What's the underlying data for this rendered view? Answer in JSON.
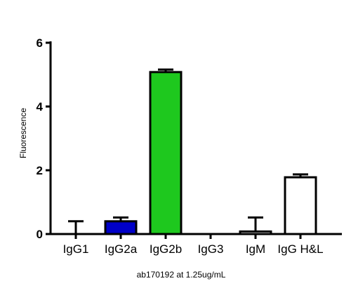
{
  "chart_data": {
    "type": "bar",
    "title": "",
    "xlabel": "ab170192 at 1.25ug/mL",
    "ylabel": "Fluorescence",
    "categories": [
      "IgG1",
      "IgG2a",
      "IgG2b",
      "IgG3",
      "IgM",
      "IgG H&L"
    ],
    "values": [
      0.0,
      0.4,
      5.08,
      0.0,
      0.08,
      1.78
    ],
    "errors": [
      0.4,
      0.12,
      0.08,
      0.0,
      0.44,
      0.09
    ],
    "bar_colors": [
      "#ffffff",
      "#0000c8",
      "#1ec81e",
      "#ffffff",
      "#ffffff",
      "#ffffff"
    ],
    "ylim": [
      0,
      6
    ],
    "yticks": [
      0,
      2,
      4,
      6
    ],
    "grid": false,
    "legend": "none"
  }
}
